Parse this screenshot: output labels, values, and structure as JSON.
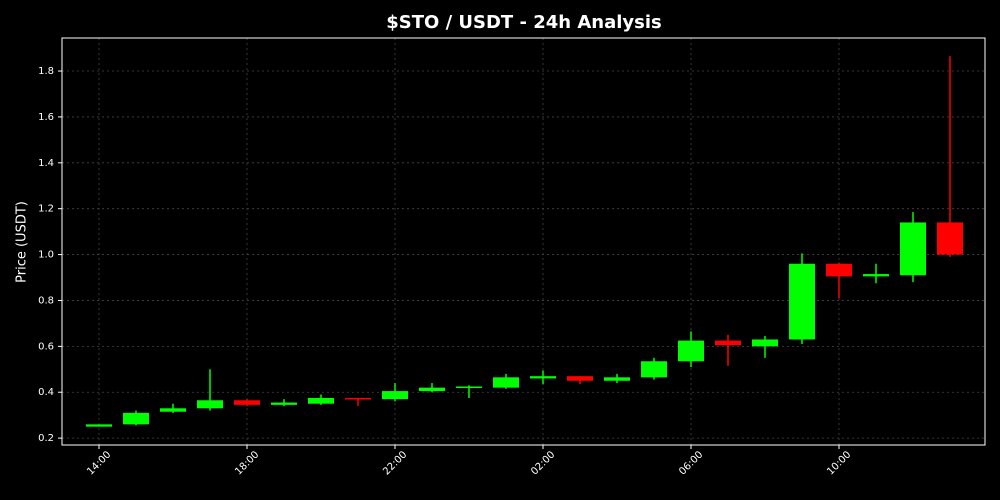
{
  "chart_data": {
    "type": "candlestick",
    "title": "$STO / USDT - 24h Analysis",
    "y_label": "Price (USDT)",
    "categories": [
      "14:00",
      null,
      null,
      null,
      "18:00",
      null,
      null,
      null,
      "22:00",
      null,
      null,
      null,
      "02:00",
      null,
      null,
      null,
      "06:00",
      null,
      null,
      null,
      "10:00",
      null,
      null,
      null
    ],
    "open": [
      0.25,
      0.26,
      0.315,
      0.33,
      0.365,
      0.345,
      0.35,
      0.375,
      0.37,
      0.405,
      0.42,
      0.42,
      0.46,
      0.47,
      0.45,
      0.465,
      0.535,
      0.625,
      0.6,
      0.63,
      0.96,
      0.905,
      0.91,
      1.14
    ],
    "high": [
      0.26,
      0.32,
      0.35,
      0.5,
      0.37,
      0.37,
      0.39,
      0.375,
      0.44,
      0.44,
      0.43,
      0.48,
      0.495,
      0.47,
      0.48,
      0.55,
      0.665,
      0.65,
      0.645,
      1.005,
      0.965,
      0.96,
      1.185,
      1.865
    ],
    "low": [
      0.25,
      0.255,
      0.31,
      0.32,
      0.34,
      0.34,
      0.345,
      0.34,
      0.36,
      0.4,
      0.375,
      0.415,
      0.435,
      0.435,
      0.44,
      0.455,
      0.51,
      0.515,
      0.55,
      0.61,
      0.81,
      0.875,
      0.88,
      0.99
    ],
    "close": [
      0.26,
      0.31,
      0.33,
      0.365,
      0.345,
      0.355,
      0.375,
      0.37,
      0.405,
      0.42,
      0.425,
      0.465,
      0.47,
      0.45,
      0.465,
      0.535,
      0.625,
      0.605,
      0.63,
      0.96,
      0.905,
      0.915,
      1.14,
      1.0
    ],
    "up_color": "#00ff00",
    "down_color": "#ff0000",
    "ylim": [
      0.17,
      1.944
    ],
    "yticks": [
      0.2,
      0.4,
      0.6,
      0.8,
      {
        "value": 1,
        "label": "1.0"
      },
      1.2,
      1.4,
      1.6,
      1.8
    ],
    "grid": true
  }
}
